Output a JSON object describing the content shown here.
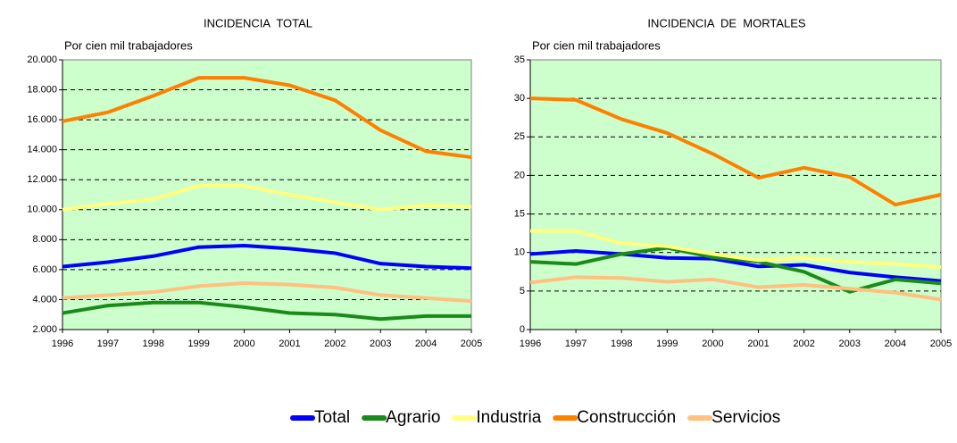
{
  "chart_data": [
    {
      "type": "line",
      "title": "INCIDENCIA  TOTAL",
      "subtitle": "Por cien mil trabajadores",
      "x": [
        1996,
        1997,
        1998,
        1999,
        2000,
        2001,
        2002,
        2003,
        2004,
        2005
      ],
      "xlim": [
        1996,
        2005
      ],
      "xticks": [
        1996,
        1997,
        1998,
        1999,
        2000,
        2001,
        2002,
        2003,
        2004,
        2005
      ],
      "ylim": [
        2000,
        20000
      ],
      "yticks": [
        {
          "value": 2000,
          "label": "2.000"
        },
        {
          "value": 4000,
          "label": "4.000"
        },
        {
          "value": 6000,
          "label": "6.000"
        },
        {
          "value": 8000,
          "label": "8.000"
        },
        {
          "value": 10000,
          "label": "10.000"
        },
        {
          "value": 12000,
          "label": "12.000"
        },
        {
          "value": 14000,
          "label": "14.000"
        },
        {
          "value": 16000,
          "label": "16.000"
        },
        {
          "value": 18000,
          "label": "18.000"
        },
        {
          "value": 20000,
          "label": "20.000"
        }
      ],
      "grid": true,
      "series": [
        {
          "name": "Total",
          "color": "#0000ff",
          "values": [
            6200,
            6500,
            6900,
            7500,
            7600,
            7400,
            7100,
            6400,
            6200,
            6100
          ]
        },
        {
          "name": "Agrario",
          "color": "#1a8a1a",
          "values": [
            3100,
            3600,
            3800,
            3800,
            3500,
            3100,
            3000,
            2700,
            2900,
            2900
          ]
        },
        {
          "name": "Industria",
          "color": "#ffff80",
          "values": [
            10000,
            10400,
            10700,
            11600,
            11600,
            11000,
            10500,
            10000,
            10300,
            10200
          ]
        },
        {
          "name": "Construcción",
          "color": "#ff8000",
          "values": [
            15900,
            16500,
            17600,
            18800,
            18800,
            18300,
            17300,
            15300,
            13900,
            13500
          ]
        },
        {
          "name": "Servicios",
          "color": "#ffc080",
          "values": [
            4100,
            4300,
            4500,
            4900,
            5100,
            5000,
            4800,
            4300,
            4100,
            3900
          ]
        }
      ]
    },
    {
      "type": "line",
      "title": "INCIDENCIA  DE  MORTALES",
      "subtitle": "Por cien mil trabajadores",
      "x": [
        1996,
        1997,
        1998,
        1999,
        2000,
        2001,
        2002,
        2003,
        2004,
        2005
      ],
      "xlim": [
        1996,
        2005
      ],
      "xticks": [
        1996,
        1997,
        1998,
        1999,
        2000,
        2001,
        2002,
        2003,
        2004,
        2005
      ],
      "ylim": [
        0,
        35
      ],
      "yticks": [
        0,
        5,
        10,
        15,
        20,
        25,
        30,
        35
      ],
      "grid": true,
      "series": [
        {
          "values": [
            9.8,
            10.2,
            9.8,
            9.3,
            9.2,
            8.2,
            8.4,
            7.4,
            6.8,
            6.3
          ]
        },
        {
          "values": [
            8.8,
            8.5,
            9.8,
            10.6,
            9.4,
            8.8,
            7.5,
            4.9,
            6.5,
            6
          ]
        },
        {
          "values": [
            12.8,
            12.8,
            11.2,
            10.8,
            9.8,
            9,
            9.3,
            8.8,
            8.5,
            8.1
          ]
        },
        {
          "values": [
            30,
            29.8,
            27.3,
            25.5,
            22.8,
            19.7,
            21,
            19.8,
            16.2,
            17.5
          ]
        },
        {
          "values": [
            6.1,
            6.8,
            6.7,
            6.2,
            6.5,
            5.5,
            5.8,
            5.3,
            4.8,
            3.9
          ]
        }
      ]
    }
  ]
}
